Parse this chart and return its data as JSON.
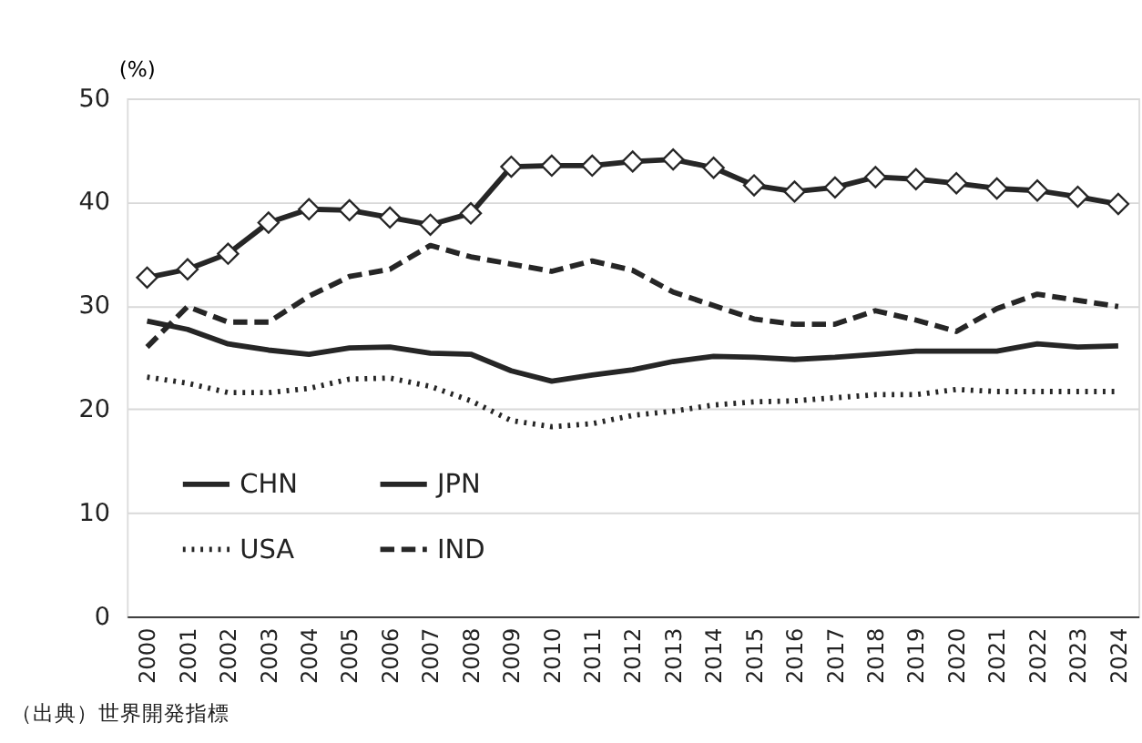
{
  "chart_data": {
    "type": "line",
    "ylabel": "(%)",
    "annotations": [
      "（出典）世界開発指標"
    ],
    "categories": [
      "2000",
      "2001",
      "2002",
      "2003",
      "2004",
      "2005",
      "2006",
      "2007",
      "2008",
      "2009",
      "2010",
      "2011",
      "2012",
      "2013",
      "2014",
      "2015",
      "2016",
      "2017",
      "2018",
      "2019",
      "2020",
      "2021",
      "2022",
      "2023",
      "2024"
    ],
    "series": [
      {
        "name": "CHN",
        "color": "#262626",
        "marker": "diamond",
        "line_style": "solid",
        "values": [
          32.7,
          33.5,
          35.0,
          38.0,
          39.3,
          39.2,
          38.5,
          37.8,
          38.9,
          43.4,
          43.5,
          43.5,
          43.9,
          44.1,
          43.3,
          41.6,
          41.0,
          41.4,
          42.4,
          42.2,
          41.8,
          41.3,
          41.1,
          40.5,
          39.8
        ]
      },
      {
        "name": "JPN",
        "color": "#262626",
        "marker": "none",
        "line_style": "solid",
        "values": [
          28.5,
          27.7,
          26.3,
          25.7,
          25.3,
          25.9,
          26.0,
          25.4,
          25.3,
          23.7,
          22.7,
          23.3,
          23.8,
          24.6,
          25.1,
          25.0,
          24.8,
          25.0,
          25.3,
          25.6,
          25.6,
          25.6,
          26.3,
          26.0,
          26.1
        ]
      },
      {
        "name": "USA",
        "color": "#262626",
        "marker": "none",
        "line_style": "dotted",
        "values": [
          23.1,
          22.5,
          21.6,
          21.6,
          22.0,
          22.9,
          23.0,
          22.2,
          20.8,
          18.9,
          18.3,
          18.6,
          19.4,
          19.8,
          20.4,
          20.7,
          20.8,
          21.1,
          21.4,
          21.4,
          21.9,
          21.7,
          21.7,
          21.7,
          21.7
        ]
      },
      {
        "name": "IND",
        "color": "#262626",
        "marker": "none",
        "line_style": "dashed",
        "values": [
          26.0,
          29.9,
          28.4,
          28.4,
          30.9,
          32.8,
          33.5,
          35.8,
          34.7,
          34.0,
          33.3,
          34.3,
          33.4,
          31.3,
          30.0,
          28.7,
          28.2,
          28.2,
          29.5,
          28.6,
          27.5,
          29.7,
          31.1,
          30.5,
          29.9
        ]
      }
    ],
    "ylim": [
      0,
      50
    ],
    "yticks": [
      0,
      10,
      20,
      30,
      40,
      50
    ],
    "grid": "y",
    "legend": "bottom left"
  }
}
